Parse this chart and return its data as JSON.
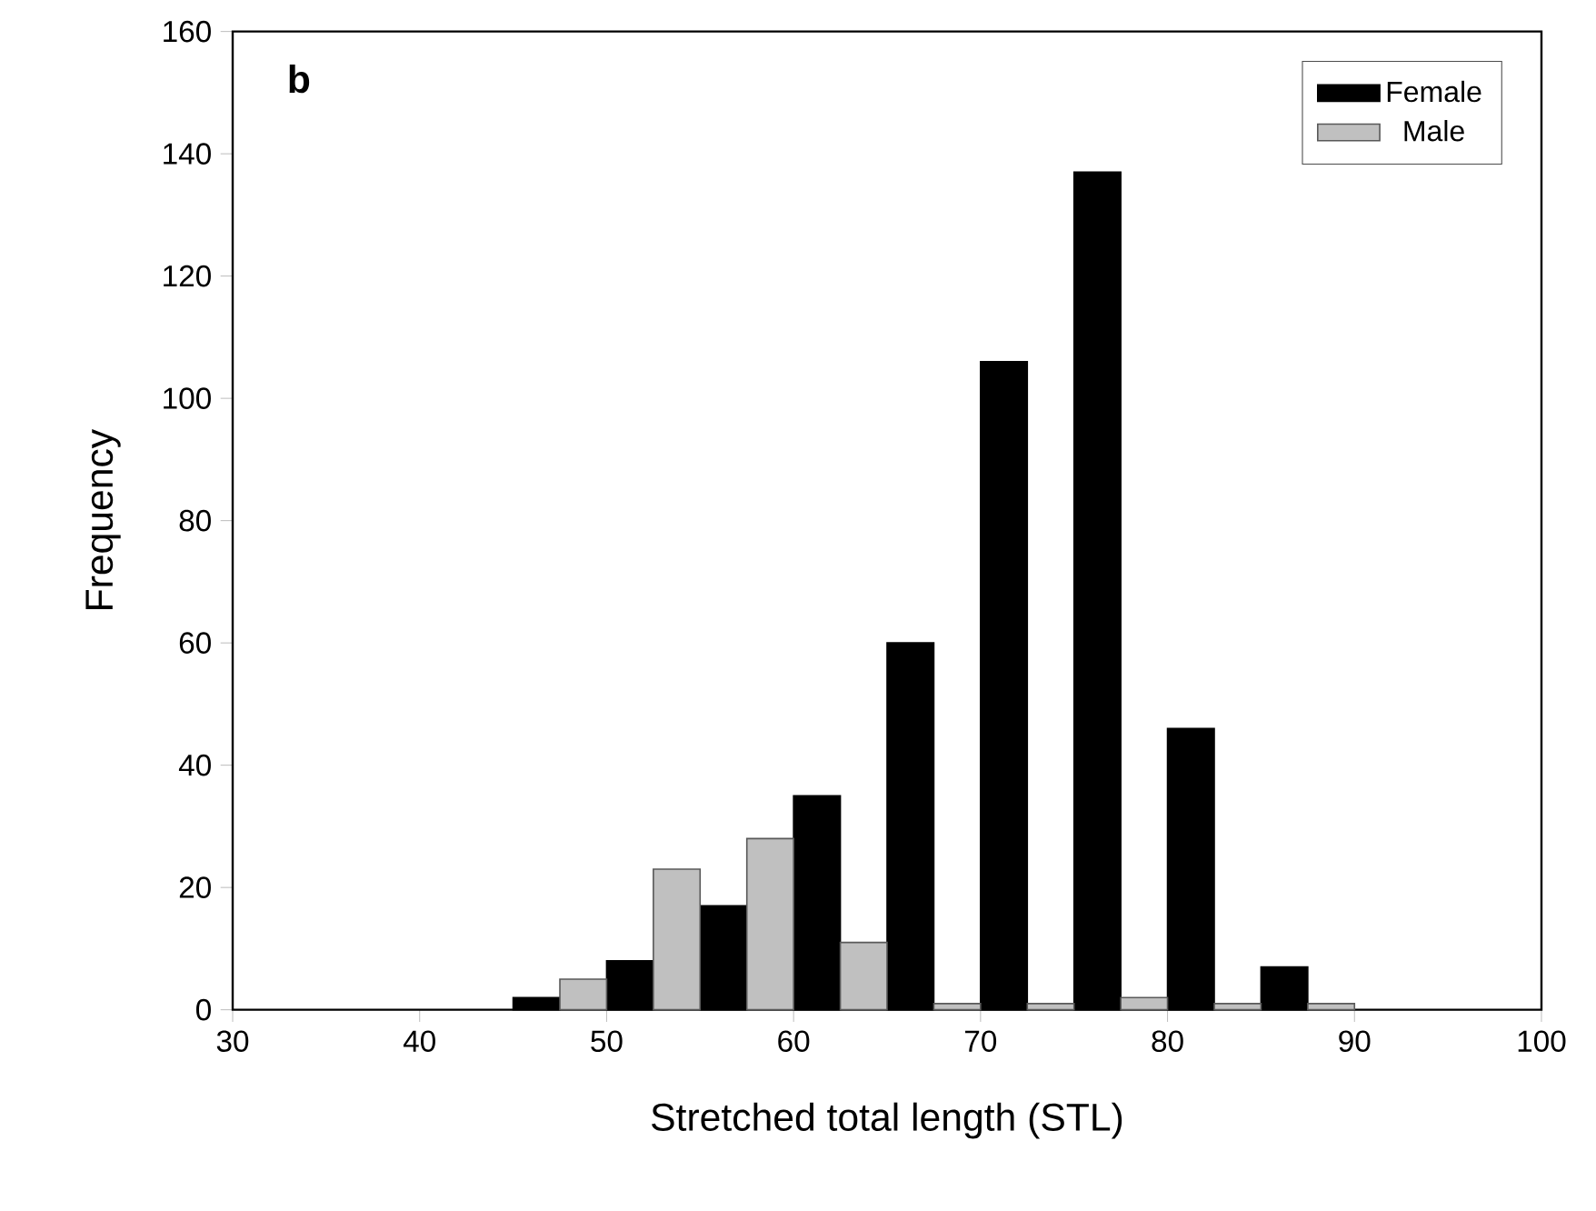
{
  "chart_data": {
    "type": "bar",
    "xlabel": "Stretched total length (STL)",
    "ylabel": "Frequency",
    "annotations": [
      "b"
    ],
    "x": [
      47.5,
      52.5,
      57.5,
      62.5,
      67.5,
      72.5,
      77.5,
      82.5,
      87.5
    ],
    "series": [
      {
        "name": "Female",
        "color": "#000000",
        "values": [
          2,
          8,
          17,
          35,
          60,
          106,
          137,
          46,
          7
        ]
      },
      {
        "name": "Male",
        "color": "#c0c0c0",
        "values": [
          5,
          23,
          28,
          11,
          1,
          1,
          2,
          1,
          1
        ]
      }
    ],
    "xlim": [
      30,
      100
    ],
    "xticks": [
      30,
      40,
      50,
      60,
      70,
      80,
      90,
      100
    ],
    "ylim": [
      0,
      160
    ],
    "yticks": [
      0,
      20,
      40,
      60,
      80,
      100,
      120,
      140,
      160
    ],
    "legend": "top right",
    "grid": false
  }
}
